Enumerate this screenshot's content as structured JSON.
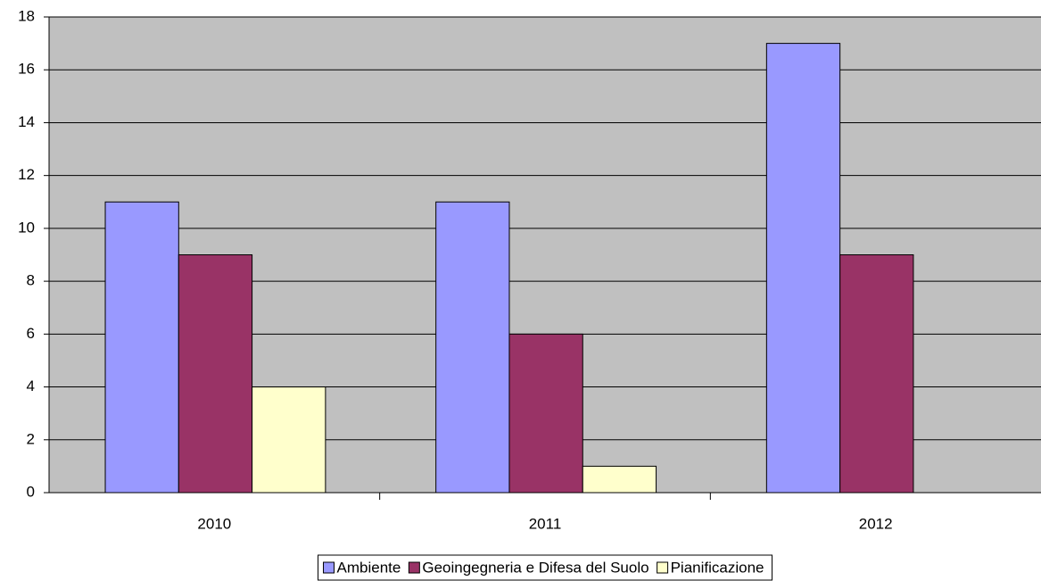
{
  "chart_data": {
    "type": "bar",
    "categories": [
      "2010",
      "2011",
      "2012"
    ],
    "series": [
      {
        "name": "Ambiente",
        "color": "#9999ff",
        "values": [
          11,
          11,
          17
        ]
      },
      {
        "name": "Geoingegneria e Difesa del Suolo",
        "color": "#993366",
        "values": [
          9,
          6,
          9
        ]
      },
      {
        "name": "Pianificazione",
        "color": "#ffffcc",
        "values": [
          4,
          1,
          null
        ]
      }
    ],
    "ylim": [
      0,
      18
    ],
    "yticks": [
      0,
      2,
      4,
      6,
      8,
      10,
      12,
      14,
      16,
      18
    ],
    "grid": true,
    "plot_background": "#c0c0c0",
    "legend": "bottom"
  }
}
